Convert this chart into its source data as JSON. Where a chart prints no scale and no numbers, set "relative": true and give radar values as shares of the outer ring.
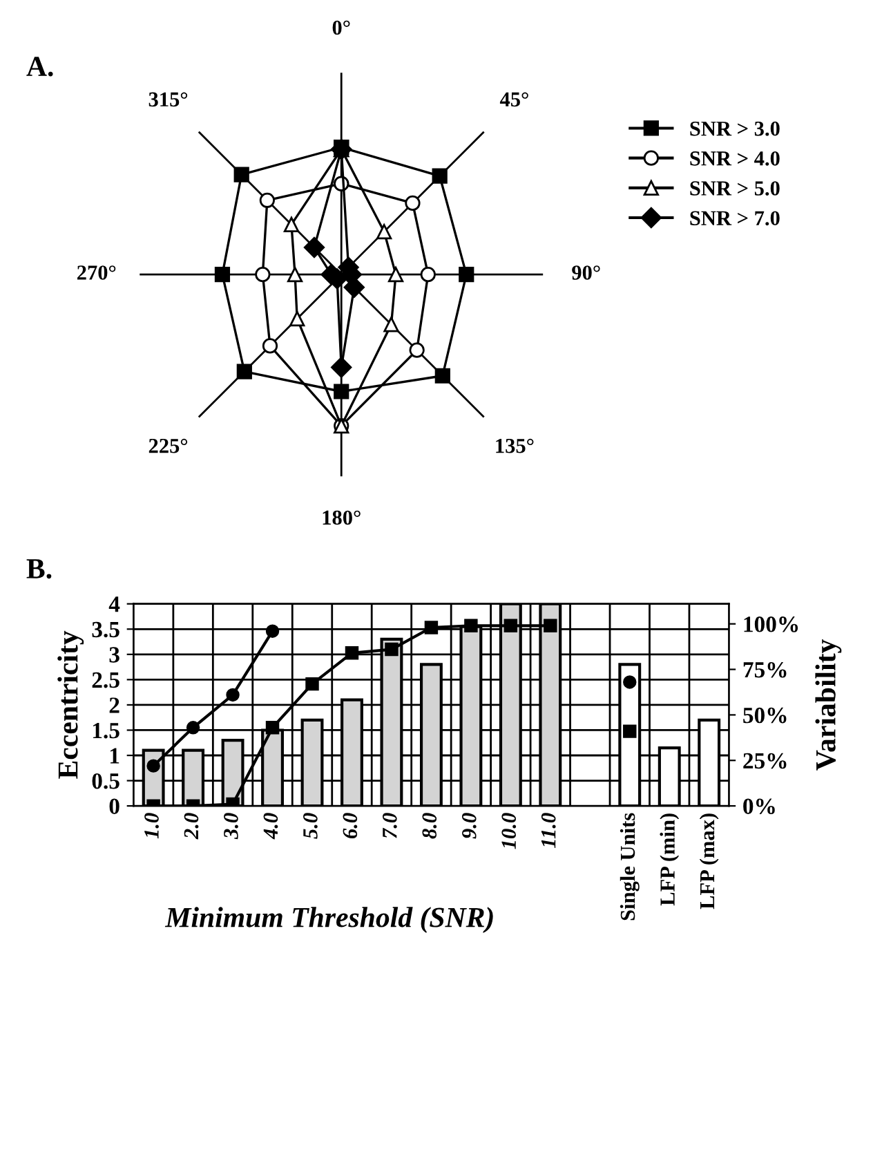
{
  "chart_data": [
    {
      "type": "radar",
      "title": "A.",
      "relative": true,
      "legend": "right",
      "categories": [
        "0°",
        "45°",
        "90°",
        "135°",
        "180°",
        "225°",
        "270°",
        "315°"
      ],
      "series": [
        {
          "name": "SNR > 3.0",
          "color": "#000000",
          "marker": "square",
          "values": [
            0.63,
            0.69,
            0.62,
            0.71,
            0.58,
            0.68,
            0.59,
            0.7
          ]
        },
        {
          "name": "SNR > 4.0",
          "color": "#000000",
          "marker": "circle",
          "values": [
            0.45,
            0.5,
            0.43,
            0.53,
            0.75,
            0.5,
            0.39,
            0.52
          ]
        },
        {
          "name": "SNR > 5.0",
          "color": "#000000",
          "marker": "triangle",
          "values": [
            0.62,
            0.3,
            0.27,
            0.35,
            0.75,
            0.31,
            0.23,
            0.35
          ]
        },
        {
          "name": "SNR > 7.0",
          "color": "#000000",
          "marker": "diamond",
          "values": [
            0.62,
            0.05,
            0.05,
            0.09,
            0.46,
            0.03,
            0.05,
            0.19
          ]
        }
      ]
    },
    {
      "type": "bar",
      "title": "B.",
      "xlabel": "Minimum Threshold (SNR)",
      "ylabel": "Eccentricity",
      "y2label": "Variability",
      "grid": true,
      "categories": [
        "1.0",
        "2.0",
        "3.0",
        "4.0",
        "5.0",
        "6.0",
        "7.0",
        "8.0",
        "9.0",
        "10.0",
        "11.0",
        null,
        "Single Units",
        "LFP (min)",
        "LFP (max)"
      ],
      "ylim": [
        0,
        4
      ],
      "yticks": [
        0,
        0.5,
        1,
        1.5,
        2,
        2.5,
        3,
        3.5,
        4
      ],
      "y2lim": [
        0,
        111
      ],
      "y2ticks": [
        {
          "value": 0,
          "label": "0%"
        },
        {
          "value": 25,
          "label": "25%"
        },
        {
          "value": 50,
          "label": "50%"
        },
        {
          "value": 75,
          "label": "75%"
        },
        {
          "value": 100,
          "label": "100%"
        }
      ],
      "series": [
        {
          "type": "bar",
          "colors": [
            "#d4d4d4",
            "#d4d4d4",
            "#d4d4d4",
            "#d4d4d4",
            "#d4d4d4",
            "#d4d4d4",
            "#d4d4d4",
            "#d4d4d4",
            "#d4d4d4",
            "#d4d4d4",
            "#d4d4d4",
            "#ffffff",
            "#ffffff",
            "#ffffff",
            "#ffffff"
          ],
          "values": [
            1.1,
            1.1,
            1.3,
            1.5,
            1.7,
            2.1,
            3.3,
            2.8,
            3.55,
            4.0,
            4.0,
            null,
            2.8,
            1.15,
            1.7
          ]
        },
        {
          "type": "line",
          "axis": "y2",
          "color": "#000000",
          "marker": "circle",
          "values": [
            22,
            43,
            61,
            96,
            null,
            null,
            null,
            null,
            null,
            null,
            null,
            null,
            68,
            null,
            null
          ]
        },
        {
          "type": "line",
          "axis": "y2",
          "color": "#000000",
          "marker": "square",
          "values": [
            0,
            0,
            1,
            43,
            67,
            84,
            86,
            98,
            99,
            99,
            99,
            null,
            41,
            null,
            null
          ]
        }
      ]
    }
  ]
}
